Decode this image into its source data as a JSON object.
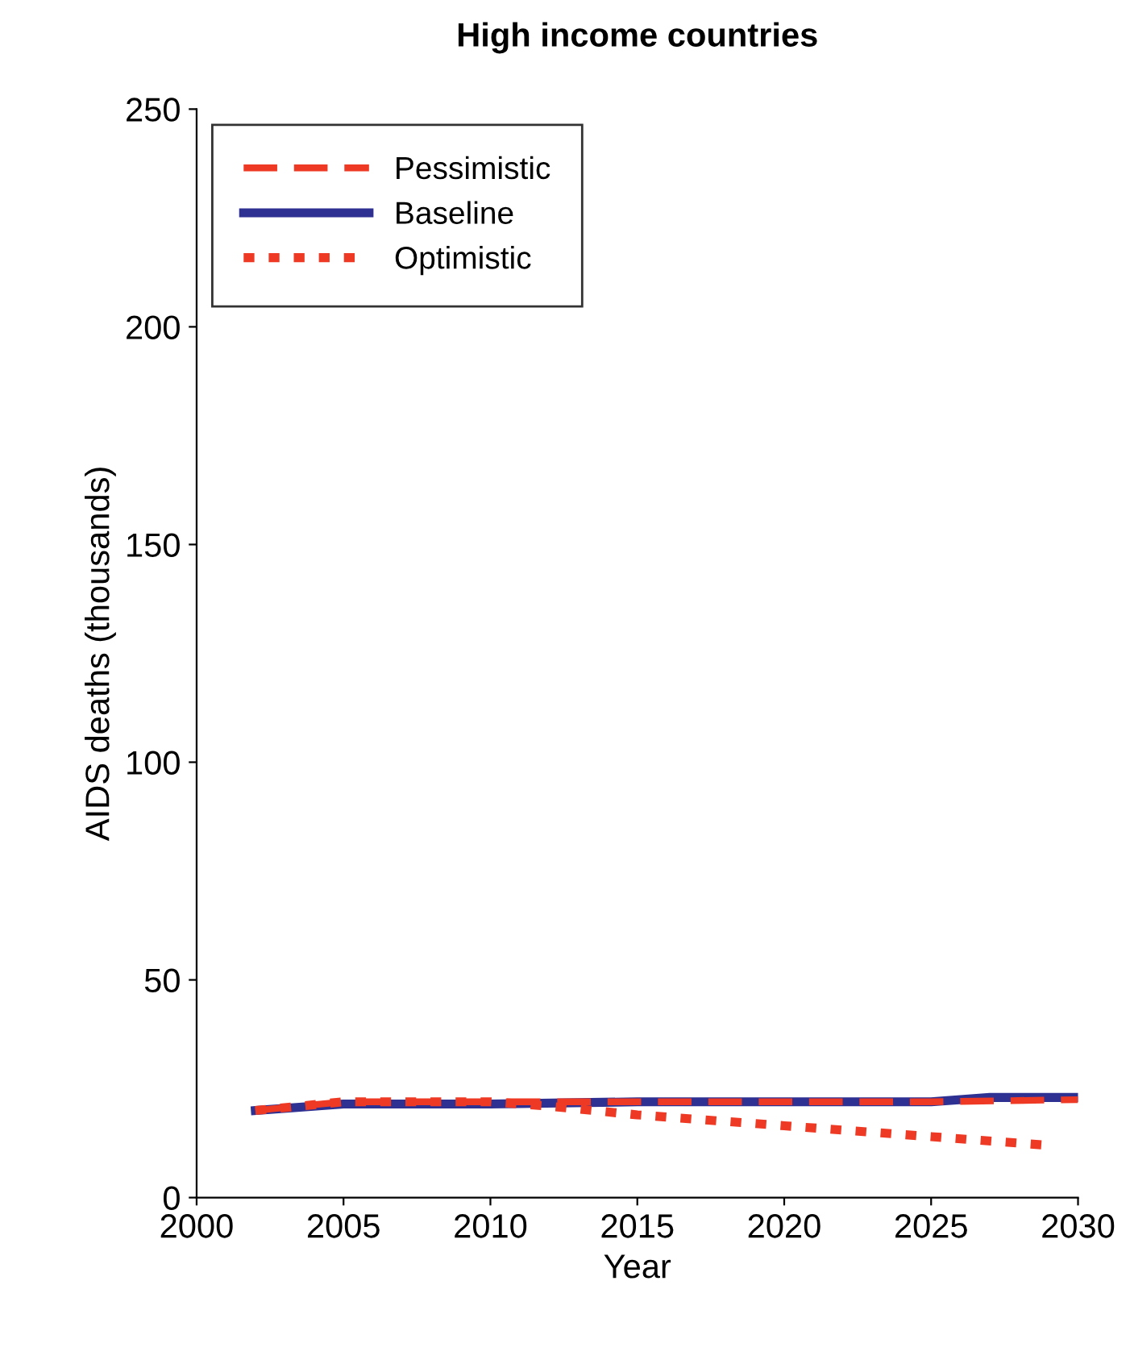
{
  "chart_data": {
    "type": "line",
    "title": "High income countries",
    "xlabel": "Year",
    "ylabel": "AIDS deaths (thousands)",
    "xlim": [
      2000,
      2030
    ],
    "xticks": [
      2000,
      2005,
      2010,
      2015,
      2020,
      2025,
      2030
    ],
    "ylim": [
      0,
      250
    ],
    "yticks": [
      0,
      50,
      100,
      150,
      200,
      250
    ],
    "grid": false,
    "legend": "top left",
    "series": [
      {
        "name": "Pessimistic",
        "color": "#ee3a24",
        "line_style": "dashed",
        "x": [
          2002,
          2005,
          2010,
          2015,
          2020,
          2025,
          2030
        ],
        "values": [
          20,
          22,
          22,
          22,
          22,
          22,
          22.5
        ]
      },
      {
        "name": "Baseline",
        "color": "#2e3192",
        "line_style": "solid",
        "x": [
          2002,
          2005,
          2010,
          2015,
          2020,
          2025,
          2027,
          2030
        ],
        "values": [
          20,
          21.5,
          21.5,
          22,
          22,
          22,
          23,
          23
        ]
      },
      {
        "name": "Optimistic",
        "color": "#ee3a24",
        "line_style": "dotted",
        "x": [
          2002,
          2005,
          2010,
          2012,
          2015,
          2020,
          2025,
          2029
        ],
        "values": [
          20,
          22,
          22,
          21,
          19,
          16.5,
          14,
          12
        ]
      }
    ]
  }
}
